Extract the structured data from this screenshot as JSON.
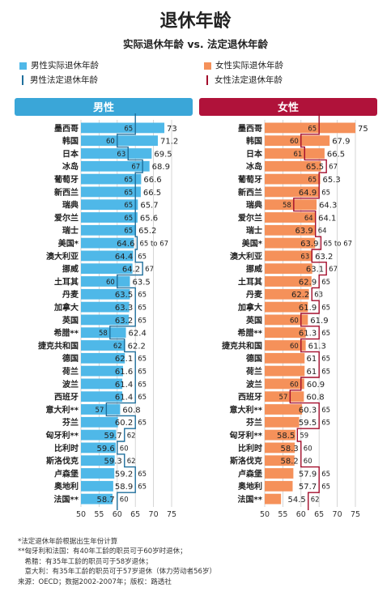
{
  "title": "退休年龄",
  "subtitle": "实际退休年龄 vs. 法定退休年龄",
  "colors": {
    "male_bar": "#4fb8e8",
    "male_line": "#1f6f9c",
    "male_header": "#3aa6d8",
    "female_bar": "#f5915a",
    "female_line": "#a30d2b",
    "female_header": "#b0123a"
  },
  "legend": {
    "male_actual": "男性实际退休年龄",
    "male_legal": "男性法定退休年龄",
    "female_actual": "女性实际退休年龄",
    "female_legal": "女性法定退休年龄"
  },
  "footnotes": [
    "*法定退休年龄根据出生年份计算",
    "**匈牙利和法国：有40年工龄的职员可于60岁时退休；",
    "　希腊：有35年工龄的职员可于58岁退休；",
    "　意大利：有35年工龄的职员可于57岁退休（体力劳动者56岁）",
    "来源：OECD；数据2002-2007年；版权：路透社"
  ],
  "chart_data": [
    {
      "type": "bar",
      "title": "男性",
      "categories": [
        "墨西哥",
        "韩国",
        "日本",
        "冰岛",
        "葡萄牙",
        "新西兰",
        "瑞典",
        "爱尔兰",
        "瑞士",
        "美国*",
        "澳大利亚",
        "挪威",
        "土耳其",
        "丹麦",
        "加拿大",
        "英国",
        "希腊**",
        "捷克共和国",
        "德国",
        "荷兰",
        "波兰",
        "西班牙",
        "意大利**",
        "芬兰",
        "匈牙利**",
        "比利时",
        "斯洛伐克",
        "卢森堡",
        "奥地利",
        "法国**"
      ],
      "series": [
        {
          "name": "男性实际退休年龄",
          "values": [
            73,
            71.2,
            69.5,
            68.9,
            66.6,
            66.5,
            65.7,
            65.6,
            65.2,
            64.6,
            64.4,
            64.2,
            63.5,
            63.5,
            63.3,
            63.2,
            62.4,
            62.2,
            62.1,
            61.6,
            61.4,
            61.4,
            60.8,
            60.2,
            59.7,
            59.6,
            59.3,
            59.2,
            58.9,
            58.7
          ]
        },
        {
          "name": "男性法定退休年龄",
          "values": [
            65,
            60,
            63,
            67,
            65,
            65,
            65,
            65,
            65,
            65.5,
            65,
            67,
            60,
            65,
            65,
            65,
            58,
            62,
            65,
            65,
            65,
            65,
            57,
            65,
            62,
            60,
            62,
            65,
            65,
            60
          ],
          "labels": [
            "65",
            "60",
            "63",
            "67",
            "65",
            "65",
            "65",
            "65",
            "65",
            "65 to 67",
            "65",
            "67",
            "60",
            "65",
            "65",
            "65",
            "58",
            "62",
            "65",
            "65",
            "65",
            "65",
            "57",
            "65",
            "62",
            "60",
            "62",
            "65",
            "65",
            "60"
          ]
        }
      ],
      "xlim": [
        50,
        75
      ],
      "xticks": [
        50,
        55,
        60,
        65,
        70,
        75
      ]
    },
    {
      "type": "bar",
      "title": "女性",
      "categories": [
        "墨西哥",
        "韩国",
        "日本",
        "冰岛",
        "葡萄牙",
        "新西兰",
        "瑞典",
        "爱尔兰",
        "瑞士",
        "美国*",
        "澳大利亚",
        "挪威",
        "土耳其",
        "丹麦",
        "加拿大",
        "英国",
        "希腊**",
        "捷克共和国",
        "德国",
        "荷兰",
        "波兰",
        "西班牙",
        "意大利**",
        "芬兰",
        "匈牙利**",
        "比利时",
        "斯洛伐克",
        "卢森堡",
        "奥地利",
        "法国**"
      ],
      "series": [
        {
          "name": "女性实际退休年龄",
          "values": [
            75,
            67.9,
            66.5,
            65.5,
            65.3,
            64.9,
            64.3,
            64.1,
            63.9,
            63.9,
            63.2,
            63.1,
            62.9,
            62.2,
            61.9,
            61.9,
            61.3,
            61.3,
            61,
            61,
            60.9,
            60.8,
            60.3,
            59.5,
            58.5,
            58.3,
            58.2,
            57.9,
            57.7,
            54.5
          ]
        },
        {
          "name": "女性法定退休年龄",
          "values": [
            65,
            60,
            61,
            67,
            65,
            65,
            58,
            64,
            64,
            65.5,
            63,
            67,
            65,
            63,
            65,
            60,
            65,
            60,
            65,
            65,
            60,
            57,
            65,
            65,
            59,
            60,
            60,
            65,
            65,
            62
          ],
          "labels": [
            "65",
            "60",
            "61",
            "67",
            "65",
            "65",
            "58",
            "64",
            "64",
            "65 to 67",
            "63",
            "67",
            "65",
            "63",
            "65",
            "60",
            "65",
            "60",
            "65",
            "65",
            "60",
            "57",
            "65",
            "65",
            "59",
            "60",
            "60",
            "65",
            "65",
            "62"
          ]
        }
      ],
      "xlim": [
        50,
        75
      ],
      "xticks": [
        50,
        55,
        60,
        65,
        70,
        75
      ]
    }
  ]
}
